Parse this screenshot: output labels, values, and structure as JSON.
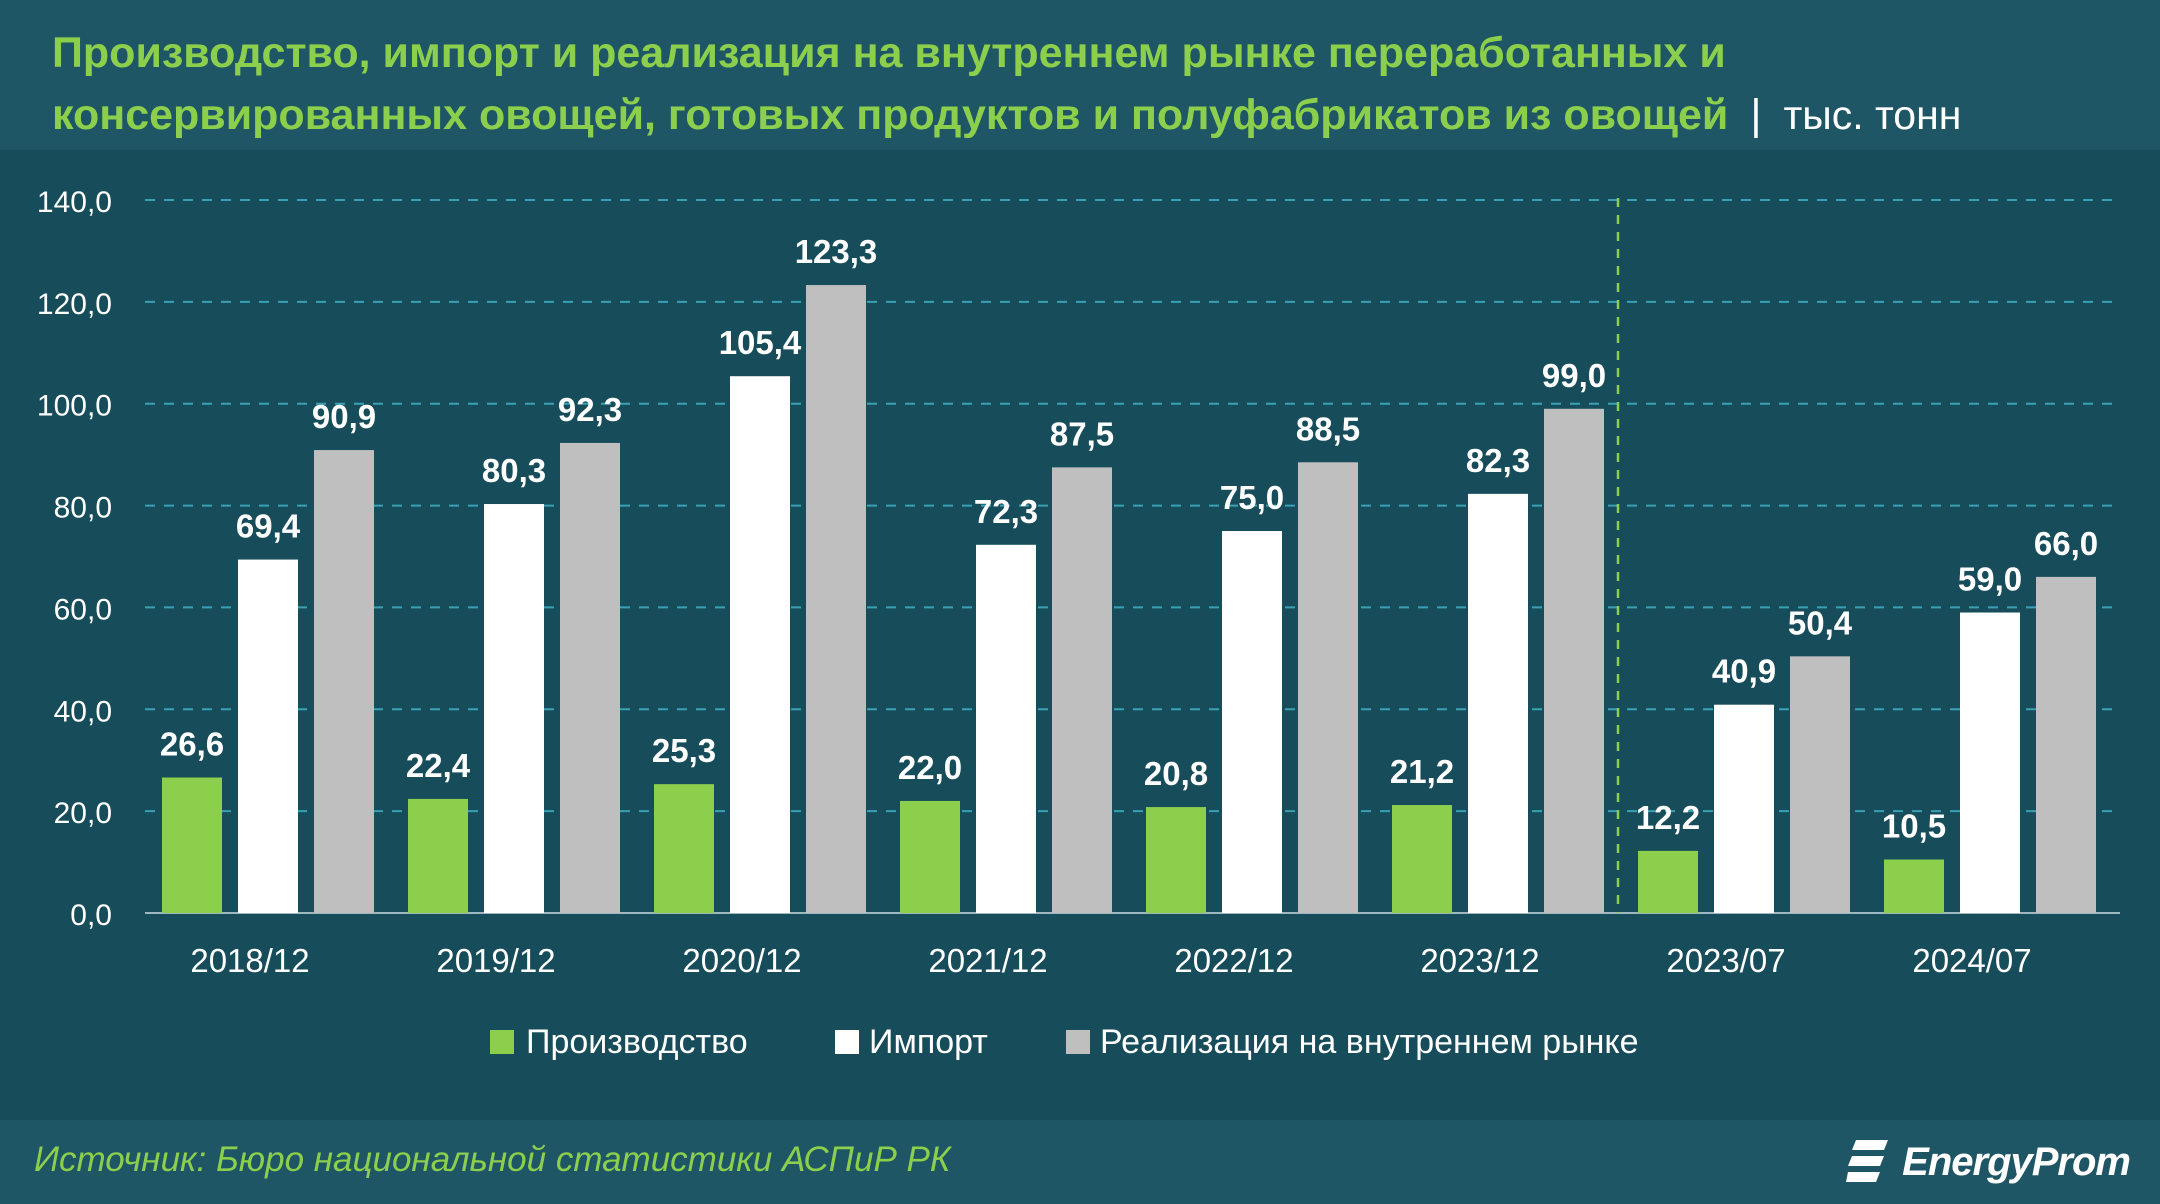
{
  "header": {
    "title": "Производство, импорт и реализация на внутреннем рынке переработанных и консервированных овощей, готовых продуктов и полуфабрикатов из овощей",
    "separator": "|",
    "unit": "тыс. тонн"
  },
  "footer": {
    "source": "Источник: Бюро национальной статистики АСПиР РК",
    "brand": "EnergyProm"
  },
  "colors": {
    "background": "#174c5b",
    "production": "#8ccf4d",
    "import": "#ffffff",
    "domestic": "#bfbfbf",
    "grid": "#3aa1b5",
    "divider": "#8ccf4d"
  },
  "chart_data": {
    "type": "bar",
    "categories": [
      "2018/12",
      "2019/12",
      "2020/12",
      "2021/12",
      "2022/12",
      "2023/12",
      "2023/07",
      "2024/07"
    ],
    "series": [
      {
        "name": "Производство",
        "values": [
          26.6,
          22.4,
          25.3,
          22.0,
          20.8,
          21.2,
          12.2,
          10.5
        ],
        "labels": [
          "26,6",
          "22,4",
          "25,3",
          "22,0",
          "20,8",
          "21,2",
          "12,2",
          "10,5"
        ]
      },
      {
        "name": "Импорт",
        "values": [
          69.4,
          80.3,
          105.4,
          72.3,
          75.0,
          82.3,
          40.9,
          59.0
        ],
        "labels": [
          "69,4",
          "80,3",
          "105,4",
          "72,3",
          "75,0",
          "82,3",
          "40,9",
          "59,0"
        ]
      },
      {
        "name": "Реализация на внутреннем рынке",
        "values": [
          90.9,
          92.3,
          123.3,
          87.5,
          88.5,
          99.0,
          50.4,
          66.0
        ],
        "labels": [
          "90,9",
          "92,3",
          "123,3",
          "87,5",
          "88,5",
          "99,0",
          "50,4",
          "66,0"
        ]
      }
    ],
    "ylim": [
      0,
      140
    ],
    "yticks": [
      0,
      20,
      40,
      60,
      80,
      100,
      120,
      140
    ],
    "ytick_labels": [
      "0,0",
      "20,0",
      "40,0",
      "60,0",
      "80,0",
      "100,0",
      "120,0",
      "140,0"
    ],
    "grid": true,
    "legend_position": "bottom",
    "divider_after_category": "2023/12"
  }
}
